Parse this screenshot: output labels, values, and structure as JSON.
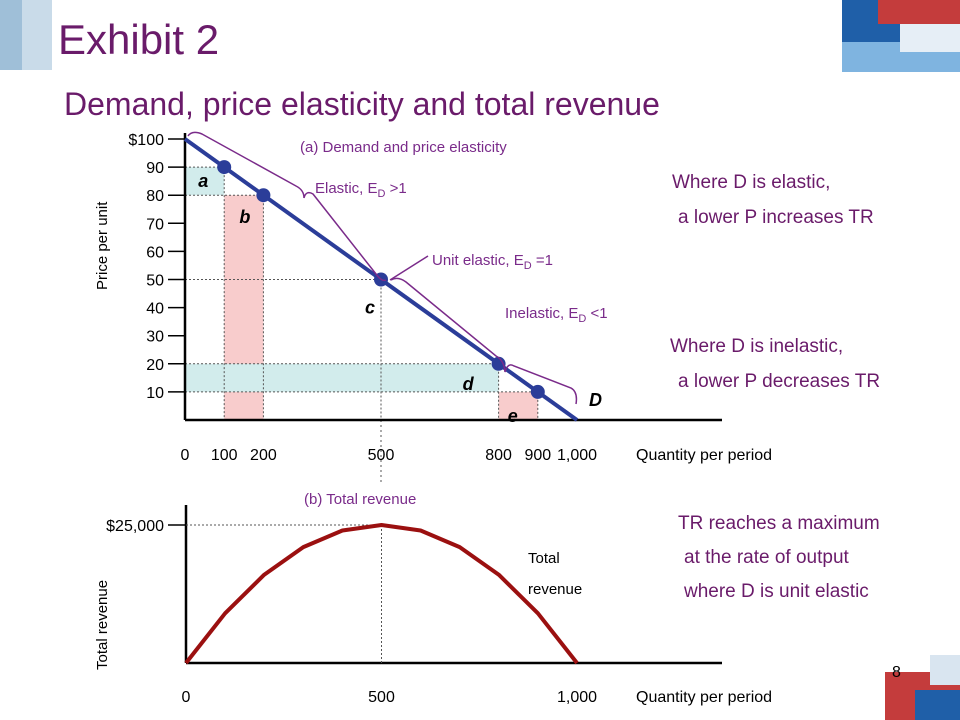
{
  "title": "Exhibit 2",
  "subtitle": "Demand, price elasticity and total revenue",
  "page_number": "8",
  "notes": {
    "elastic_line1": "Where D is elastic,",
    "elastic_line2": "a lower P increases TR",
    "inelastic_line1": "Where D is inelastic,",
    "inelastic_line2": "a lower P decreases TR",
    "tr_line1": "TR reaches a maximum",
    "tr_line2": "at the rate of output",
    "tr_line3": "where D is unit elastic"
  },
  "colors": {
    "title": "#6a1b6a",
    "demand_line": "#2b3d99",
    "revenue_curve": "#9b1010",
    "pink_fill": "#f8cccc",
    "teal_fill": "#d2ecec",
    "bracket": "#7a2b8a"
  },
  "chart_data": [
    {
      "type": "line",
      "title": "(a) Demand and price elasticity",
      "xlabel": "Quantity per period",
      "ylabel": "Price per unit",
      "xlim": [
        0,
        1000
      ],
      "ylim": [
        0,
        100
      ],
      "x_ticks": [
        "0",
        "100",
        "200",
        "500",
        "800",
        "900",
        "1,000"
      ],
      "x_tick_values": [
        0,
        100,
        200,
        500,
        800,
        900,
        1000
      ],
      "y_ticks": [
        "10",
        "20",
        "30",
        "40",
        "50",
        "60",
        "70",
        "80",
        "90",
        "$100"
      ],
      "y_tick_values": [
        10,
        20,
        30,
        40,
        50,
        60,
        70,
        80,
        90,
        100
      ],
      "series": [
        {
          "name": "D",
          "x": [
            0,
            1000
          ],
          "y": [
            100,
            0
          ]
        }
      ],
      "points": [
        {
          "label": "a",
          "x": 100,
          "y": 90
        },
        {
          "label": "b",
          "x": 200,
          "y": 80
        },
        {
          "label": "c",
          "x": 500,
          "y": 50
        },
        {
          "label": "d",
          "x": 800,
          "y": 20
        },
        {
          "label": "e",
          "x": 900,
          "y": 10
        }
      ],
      "annotations": {
        "elastic": "Elastic, E",
        "elastic_sub": "D",
        "elastic_rel": ">1",
        "unit": "Unit elastic, E",
        "unit_sub": "D",
        "unit_rel": "=1",
        "inelastic": "Inelastic, E",
        "inelastic_sub": "D",
        "inelastic_rel": "<1"
      },
      "grid": false
    },
    {
      "type": "line",
      "title": "(b) Total revenue",
      "xlabel": "Quantity per period",
      "ylabel": "Total revenue",
      "xlim": [
        0,
        1000
      ],
      "ylim": [
        0,
        25000
      ],
      "x_ticks": [
        "0",
        "500",
        "1,000"
      ],
      "x_tick_values": [
        0,
        500,
        1000
      ],
      "y_ticks": [
        "$25,000"
      ],
      "y_tick_values": [
        25000
      ],
      "series": [
        {
          "name": "Total revenue",
          "x": [
            0,
            100,
            200,
            300,
            400,
            500,
            600,
            700,
            800,
            900,
            1000
          ],
          "y": [
            0,
            9000,
            16000,
            21000,
            24000,
            25000,
            24000,
            21000,
            16000,
            9000,
            0
          ]
        }
      ],
      "curve_label_line1": "Total",
      "curve_label_line2": "revenue",
      "grid": false
    }
  ]
}
